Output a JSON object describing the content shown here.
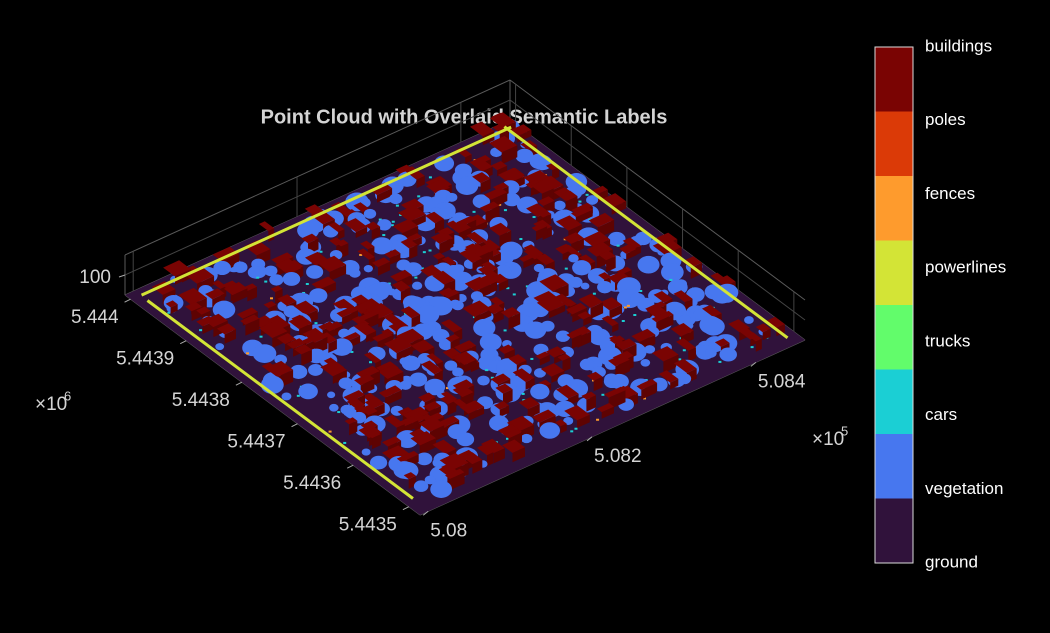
{
  "chart_data": {
    "type": "pointcloud",
    "title": "Point Cloud with Overlaid Semantic Labels",
    "xlim": [
      5.0799,
      5.0846
    ],
    "xticks": [
      5.08,
      5.082,
      5.084
    ],
    "x_multiplier": {
      "base": "×10",
      "exponent": 5
    },
    "ylim": [
      5.44348,
      5.44401
    ],
    "yticks": [
      5.4435,
      5.4436,
      5.4437,
      5.4438,
      5.4439,
      5.444
    ],
    "y_multiplier": {
      "base": "×10",
      "exponent": 6
    },
    "zlim": [
      80,
      120
    ],
    "zticks": [
      100
    ],
    "grid": true,
    "classes": [
      {
        "name": "ground",
        "color": "#30123b"
      },
      {
        "name": "vegetation",
        "color": "#4777ef"
      },
      {
        "name": "cars",
        "color": "#1bcfd4"
      },
      {
        "name": "trucks",
        "color": "#62fc6b"
      },
      {
        "name": "powerlines",
        "color": "#d3e436"
      },
      {
        "name": "fences",
        "color": "#fe9b2d"
      },
      {
        "name": "poles",
        "color": "#db3a07"
      },
      {
        "name": "buildings",
        "color": "#7a0403"
      }
    ]
  }
}
